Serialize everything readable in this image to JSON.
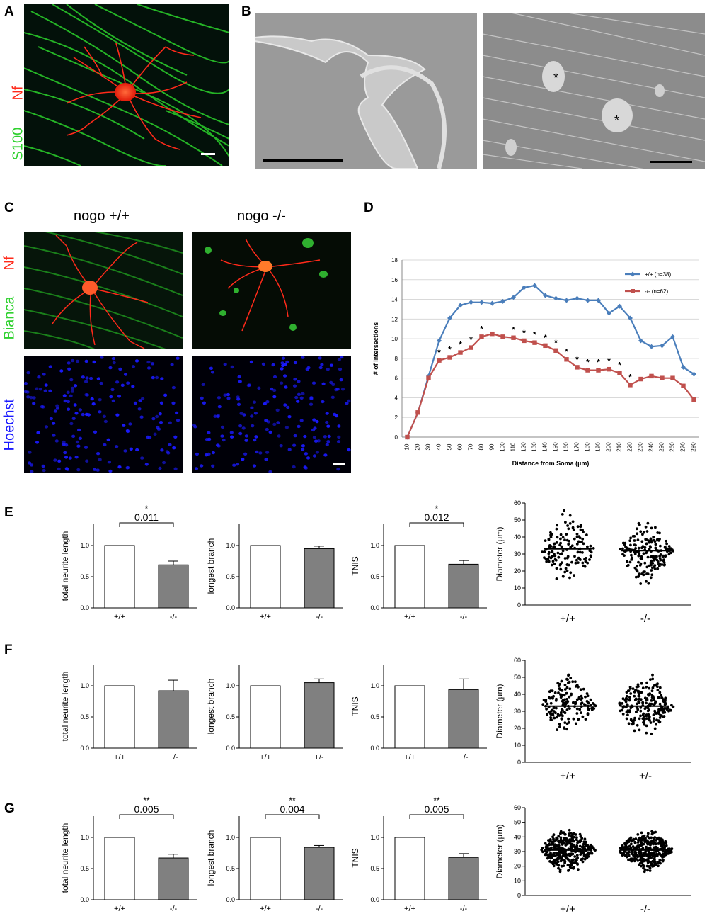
{
  "panels": {
    "A": {
      "letter": "A",
      "stain_red": "Nf",
      "stain_green": "S100"
    },
    "B": {
      "letter": "B",
      "asterisk": "*"
    },
    "C": {
      "letter": "C",
      "col1": "nogo +/+",
      "col2": "nogo -/-",
      "stain_green": "Bianca",
      "stain_red": "Nf",
      "stain_blue": "Hoechst"
    },
    "D": {
      "letter": "D"
    },
    "E": {
      "letter": "E"
    },
    "F": {
      "letter": "F"
    },
    "G": {
      "letter": "G"
    }
  },
  "colors": {
    "wt": "#4a7ebb",
    "ko": "#c0504d",
    "bar_ko": "#808080",
    "green": "#2fd12f",
    "red": "#ff2a1a",
    "blue": "#1a1aff"
  },
  "chart_data": [
    {
      "id": "D",
      "type": "line",
      "xlabel": "Distance from Soma (µm)",
      "ylabel": "# of intersections",
      "x": [
        10,
        20,
        30,
        40,
        50,
        60,
        70,
        80,
        90,
        100,
        110,
        120,
        130,
        140,
        150,
        160,
        170,
        180,
        190,
        200,
        210,
        220,
        230,
        240,
        250,
        260,
        270,
        280
      ],
      "ylim": [
        0,
        18
      ],
      "yticks": [
        0,
        2,
        4,
        6,
        8,
        10,
        12,
        14,
        16,
        18
      ],
      "grid": true,
      "legend_position": "top-right",
      "series": [
        {
          "name": "+/+ (n=38)",
          "color": "#4a7ebb",
          "values": [
            0,
            2.5,
            6.2,
            9.8,
            12.1,
            13.4,
            13.7,
            13.7,
            13.6,
            13.8,
            14.2,
            15.2,
            15.4,
            14.4,
            14.1,
            13.9,
            14.1,
            13.9,
            13.9,
            12.6,
            13.3,
            12.1,
            9.8,
            9.2,
            9.3,
            10.2,
            7.1,
            6.4
          ]
        },
        {
          "name": "-/- (n=62)",
          "color": "#c0504d",
          "values": [
            0,
            2.5,
            6.0,
            7.8,
            8.1,
            8.6,
            9.1,
            10.2,
            10.5,
            10.2,
            10.1,
            9.8,
            9.6,
            9.3,
            8.8,
            7.9,
            7.1,
            6.8,
            6.8,
            6.9,
            6.5,
            5.3,
            5.9,
            6.2,
            6.0,
            6.0,
            5.2,
            3.8
          ]
        }
      ],
      "significance_marker": "*",
      "significant_x": [
        40,
        50,
        60,
        70,
        80,
        110,
        120,
        130,
        140,
        150,
        160,
        170,
        180,
        190,
        200,
        210,
        220
      ]
    },
    {
      "id": "E1",
      "type": "bar",
      "ylabel": "total neurite length",
      "categories": [
        "+/+",
        "-/-"
      ],
      "values": [
        1.0,
        0.69
      ],
      "errors": [
        0,
        0.06
      ],
      "ylim": [
        0,
        1.0
      ],
      "yticks": [
        "0.0",
        "0.5",
        "1.0"
      ],
      "pvalue": "0.011",
      "stars": "*"
    },
    {
      "id": "E2",
      "type": "bar",
      "ylabel": "longest branch",
      "categories": [
        "+/+",
        "-/-"
      ],
      "values": [
        1.0,
        0.95
      ],
      "errors": [
        0,
        0.04
      ],
      "ylim": [
        0,
        1.0
      ],
      "yticks": [
        "0.0",
        "0.5",
        "1.0"
      ],
      "pvalue": "",
      "stars": ""
    },
    {
      "id": "E3",
      "type": "bar",
      "ylabel": "TNIS",
      "categories": [
        "+/+",
        "-/-"
      ],
      "values": [
        1.0,
        0.7
      ],
      "errors": [
        0,
        0.06
      ],
      "ylim": [
        0,
        1.0
      ],
      "yticks": [
        "0.0",
        "0.5",
        "1.0"
      ],
      "pvalue": "0.012",
      "stars": "*"
    },
    {
      "id": "E4",
      "type": "scatter",
      "ylabel": "Diameter (µm)",
      "categories": [
        "+/+",
        "-/-"
      ],
      "ylim": [
        0,
        60
      ],
      "yticks": [
        "0",
        "10",
        "20",
        "30",
        "40",
        "50",
        "60"
      ],
      "medians": [
        33,
        32
      ],
      "ranges": [
        [
          11,
          61
        ],
        [
          7,
          52
        ]
      ],
      "n": [
        140,
        190
      ]
    },
    {
      "id": "F1",
      "type": "bar",
      "ylabel": "total neurite length",
      "categories": [
        "+/+",
        "+/-"
      ],
      "values": [
        1.0,
        0.92
      ],
      "errors": [
        0,
        0.17
      ],
      "ylim": [
        0,
        1.0
      ],
      "yticks": [
        "0.0",
        "0.5",
        "1.0"
      ],
      "pvalue": "",
      "stars": ""
    },
    {
      "id": "F2",
      "type": "bar",
      "ylabel": "longest branch",
      "categories": [
        "+/+",
        "+/-"
      ],
      "values": [
        1.0,
        1.05
      ],
      "errors": [
        0,
        0.06
      ],
      "ylim": [
        0,
        1.0
      ],
      "yticks": [
        "0.0",
        "0.5",
        "1.0"
      ],
      "pvalue": "",
      "stars": ""
    },
    {
      "id": "F3",
      "type": "bar",
      "ylabel": "TNIS",
      "categories": [
        "+/+",
        "+/-"
      ],
      "values": [
        1.0,
        0.94
      ],
      "errors": [
        0,
        0.17
      ],
      "ylim": [
        0,
        1.0
      ],
      "yticks": [
        "0.0",
        "0.5",
        "1.0"
      ],
      "pvalue": "",
      "stars": ""
    },
    {
      "id": "F4",
      "type": "scatter",
      "ylabel": "Diameter (µm)",
      "categories": [
        "+/+",
        "+/-"
      ],
      "ylim": [
        0,
        60
      ],
      "yticks": [
        "0",
        "10",
        "20",
        "30",
        "40",
        "50",
        "60"
      ],
      "medians": [
        33,
        33
      ],
      "ranges": [
        [
          15,
          56
        ],
        [
          13,
          55
        ]
      ],
      "n": [
        160,
        210
      ]
    },
    {
      "id": "G1",
      "type": "bar",
      "ylabel": "total neurite length",
      "categories": [
        "+/+",
        "-/-"
      ],
      "values": [
        1.0,
        0.67
      ],
      "errors": [
        0,
        0.06
      ],
      "ylim": [
        0,
        1.0
      ],
      "yticks": [
        "0.0",
        "0.5",
        "1.0"
      ],
      "pvalue": "0.005",
      "stars": "**"
    },
    {
      "id": "G2",
      "type": "bar",
      "ylabel": "longest branch",
      "categories": [
        "+/+",
        "-/-"
      ],
      "values": [
        1.0,
        0.84
      ],
      "errors": [
        0,
        0.03
      ],
      "ylim": [
        0,
        1.0
      ],
      "yticks": [
        "0.0",
        "0.5",
        "1.0"
      ],
      "pvalue": "0.004",
      "stars": "**"
    },
    {
      "id": "G3",
      "type": "bar",
      "ylabel": "TNIS",
      "categories": [
        "+/+",
        "-/-"
      ],
      "values": [
        1.0,
        0.68
      ],
      "errors": [
        0,
        0.06
      ],
      "ylim": [
        0,
        1.0
      ],
      "yticks": [
        "0.0",
        "0.5",
        "1.0"
      ],
      "pvalue": "0.005",
      "stars": "**"
    },
    {
      "id": "G4",
      "type": "scatter",
      "ylabel": "Diameter (µm)",
      "categories": [
        "+/+",
        "-/-"
      ],
      "ylim": [
        0,
        60
      ],
      "yticks": [
        "0",
        "10",
        "20",
        "30",
        "40",
        "50",
        "60"
      ],
      "medians": [
        31,
        31
      ],
      "ranges": [
        [
          12,
          48
        ],
        [
          14,
          48
        ]
      ],
      "n": [
        320,
        340
      ]
    }
  ]
}
